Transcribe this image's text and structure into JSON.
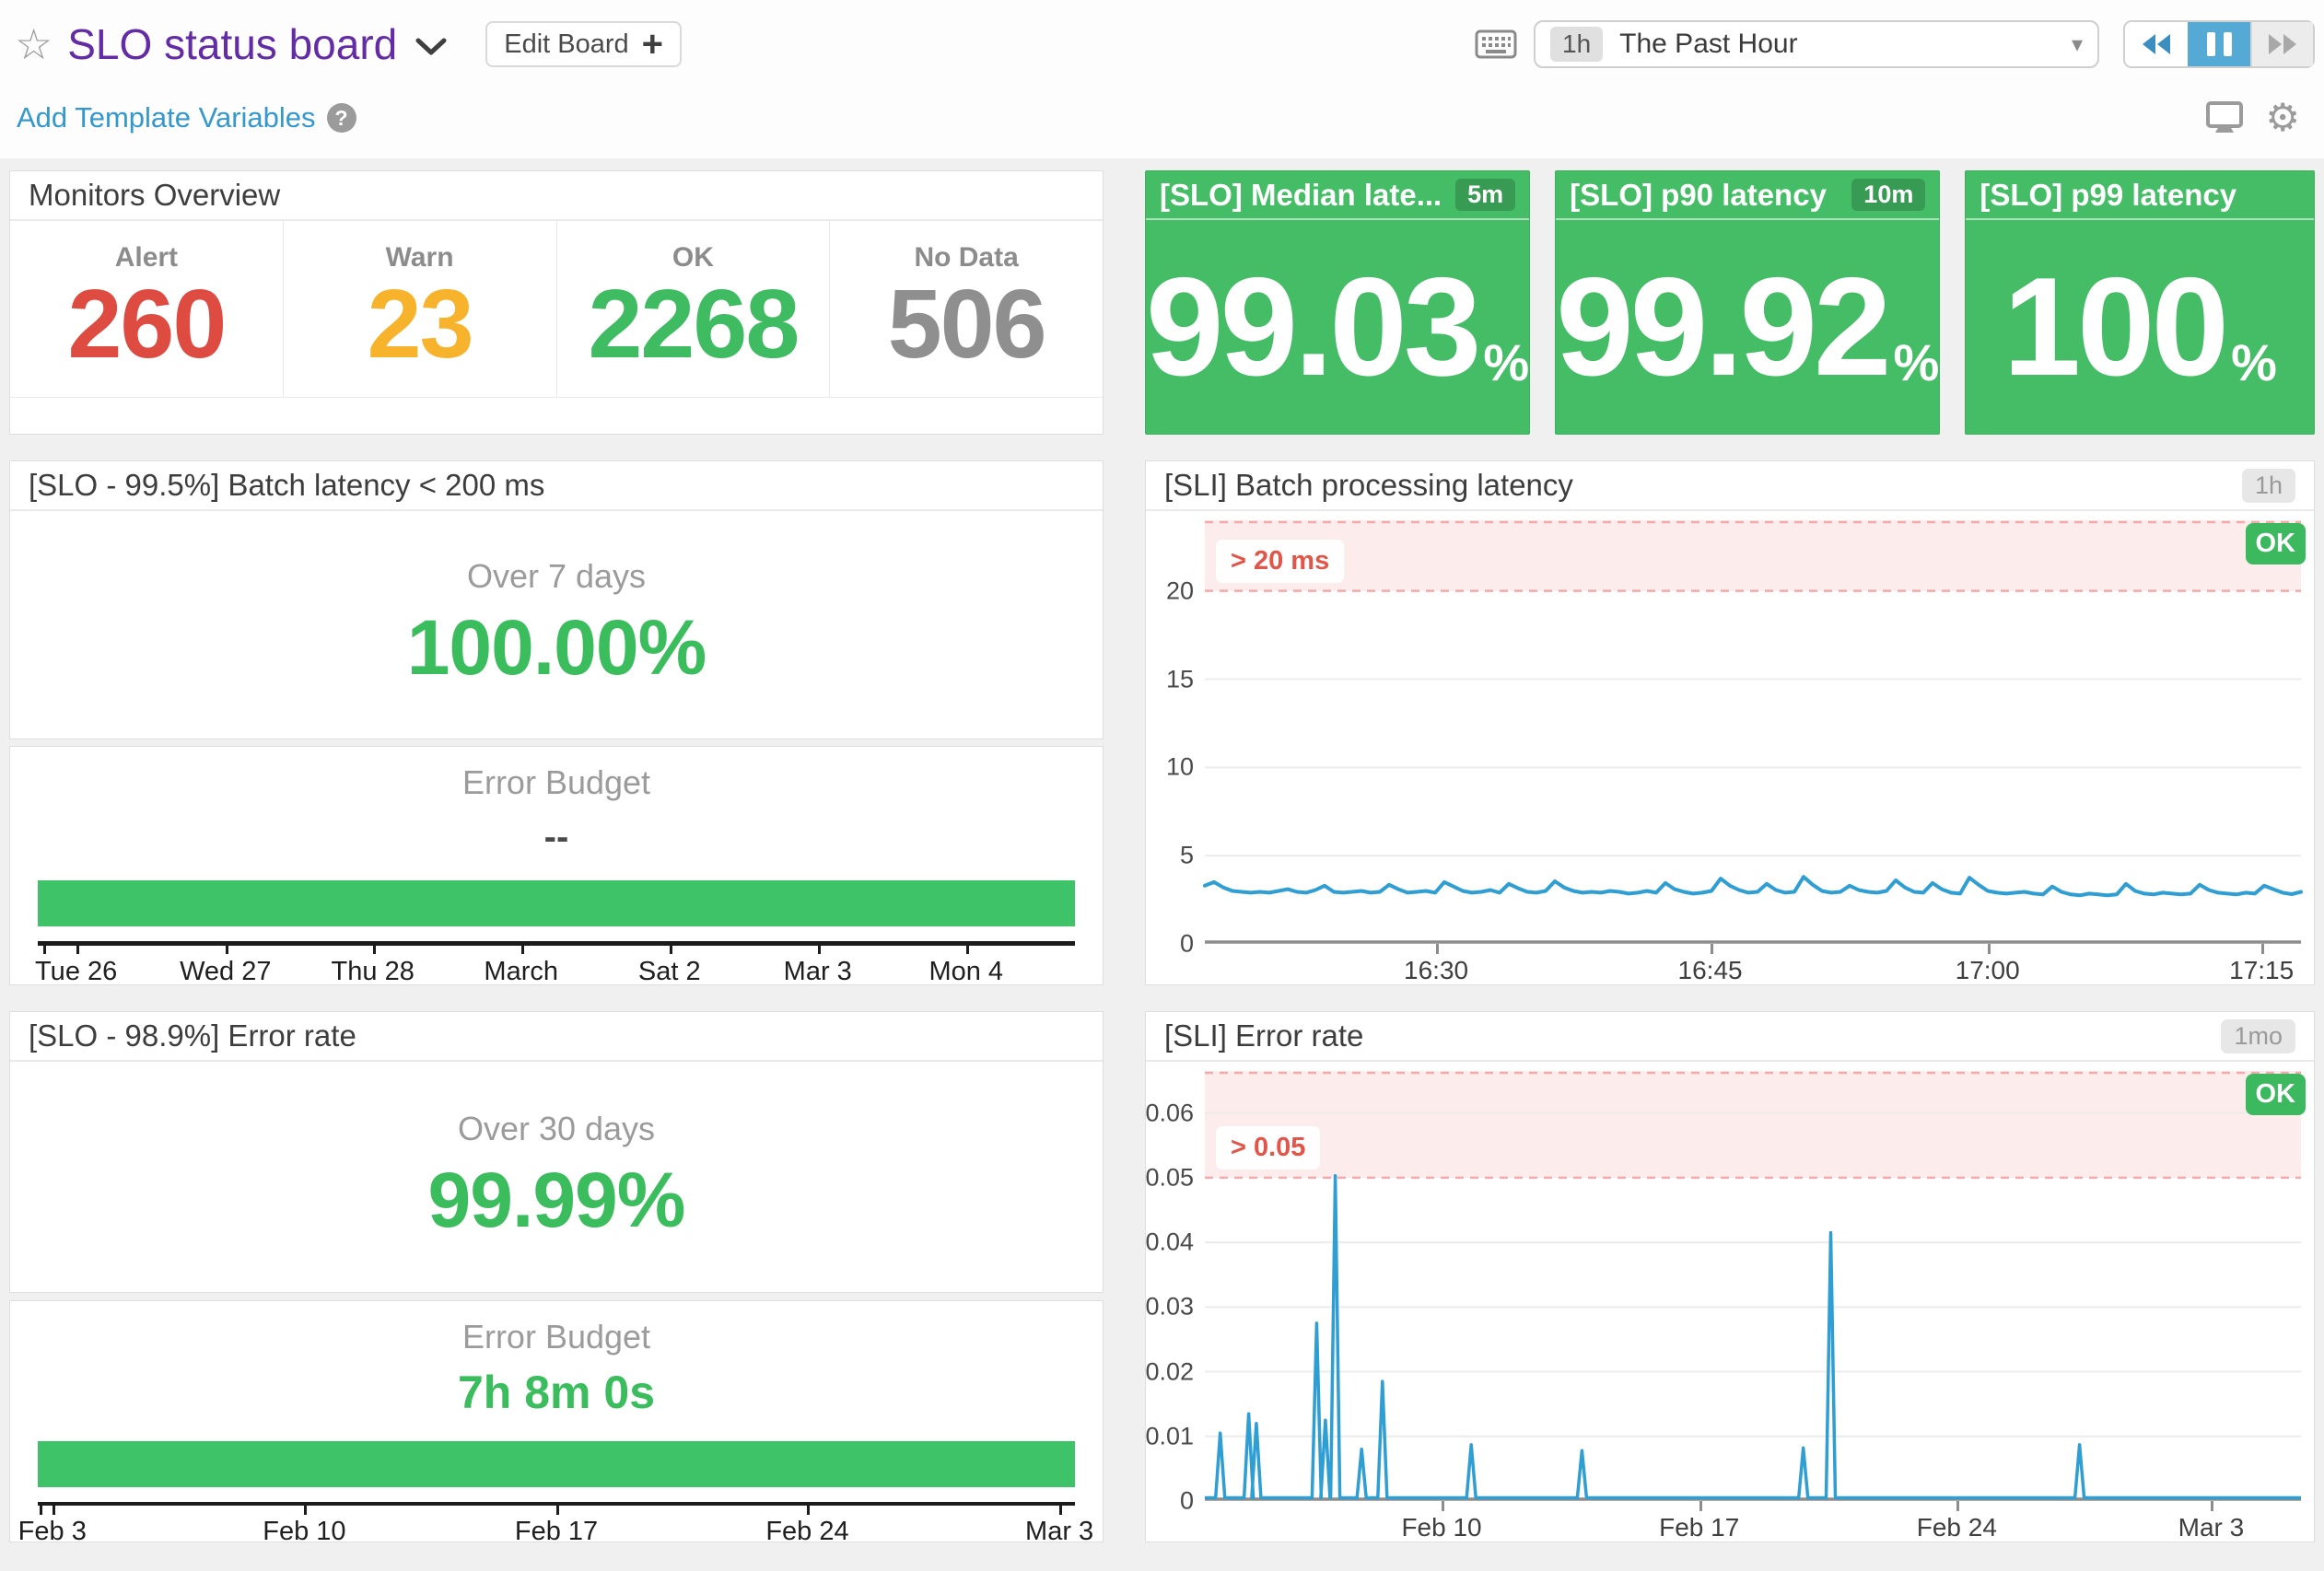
{
  "header": {
    "title": "SLO status board",
    "edit_board_label": "Edit Board",
    "time_range": {
      "badge": "1h",
      "label": "The Past Hour"
    },
    "add_template_variables": "Add Template Variables",
    "help_glyph": "?"
  },
  "colors": {
    "alert": "#de4b40",
    "warn": "#f7b32c",
    "ok": "#3fbc62",
    "no_data": "#8f8f8f",
    "tile_bg": "#45bd66",
    "green_text": "#3bbd5e",
    "bar_green": "#3fc368",
    "chart_blue": "#2f9ed3",
    "threshold_pink": "#fdecec",
    "threshold_border": "#f2aaaa"
  },
  "monitors_overview": {
    "title": "Monitors Overview",
    "stats": [
      {
        "label": "Alert",
        "value": "260",
        "color": "#de4b40"
      },
      {
        "label": "Warn",
        "value": "23",
        "color": "#f7b32c"
      },
      {
        "label": "OK",
        "value": "2268",
        "color": "#3fbc62"
      },
      {
        "label": "No Data",
        "value": "506",
        "color": "#8f8f8f"
      }
    ]
  },
  "slo_tiles": [
    {
      "title": "[SLO] Median late...",
      "badge": "5m",
      "value": "99.03",
      "unit": "%"
    },
    {
      "title": "[SLO] p90 latency",
      "badge": "10m",
      "value": "99.92",
      "unit": "%"
    },
    {
      "title": "[SLO] p99 latency",
      "badge": null,
      "value": "100",
      "unit": "%"
    }
  ],
  "slo_batch": {
    "title": "[SLO - 99.5%] Batch latency < 200 ms",
    "period_label": "Over 7 days",
    "value": "100.00%",
    "budget_label": "Error Budget",
    "budget_value": "--",
    "bar_fill_pct": 100,
    "extra_ticks": [
      0.5
    ],
    "axis_ticks": [
      {
        "label": "Tue 26",
        "pos": 3.7
      },
      {
        "label": "Wed 27",
        "pos": 18.1
      },
      {
        "label": "Thu 28",
        "pos": 32.3
      },
      {
        "label": "March",
        "pos": 46.6
      },
      {
        "label": "Sat 2",
        "pos": 60.9
      },
      {
        "label": "Mar 3",
        "pos": 75.2
      },
      {
        "label": "Mon 4",
        "pos": 89.5
      }
    ]
  },
  "slo_error": {
    "title": "[SLO - 98.9%] Error rate",
    "period_label": "Over 30 days",
    "value": "99.99%",
    "budget_label": "Error Budget",
    "budget_value": "7h 8m 0s",
    "bar_fill_pct": 100,
    "extra_ticks": [
      0.2
    ],
    "axis_ticks": [
      {
        "label": "Feb 3",
        "pos": 1.4
      },
      {
        "label": "Feb 10",
        "pos": 25.7
      },
      {
        "label": "Feb 17",
        "pos": 50.0
      },
      {
        "label": "Feb 24",
        "pos": 74.2
      },
      {
        "label": "Mar 3",
        "pos": 98.5
      }
    ]
  },
  "sli_latency": {
    "title": "[SLI] Batch processing latency",
    "time_badge": "1h",
    "status": "OK",
    "threshold_label": "> 20 ms",
    "chart": {
      "type": "line",
      "ymax": 24,
      "threshold_from": 20,
      "y_ticks": [
        20,
        15,
        10,
        5,
        0
      ],
      "x_ticks": [
        {
          "label": "16:30",
          "pos": 21.1
        },
        {
          "label": "16:45",
          "pos": 46.1
        },
        {
          "label": "17:00",
          "pos": 71.4
        },
        {
          "label": "17:15",
          "pos": 96.4
        }
      ],
      "values": [
        3.3,
        3.5,
        3.2,
        3.0,
        2.95,
        2.9,
        2.95,
        2.9,
        3.0,
        3.1,
        2.95,
        2.9,
        3.05,
        3.3,
        2.95,
        2.9,
        2.95,
        3.0,
        2.9,
        2.95,
        3.35,
        3.1,
        2.9,
        2.95,
        3.0,
        2.9,
        3.5,
        3.25,
        3.0,
        2.9,
        2.95,
        3.05,
        2.9,
        3.4,
        3.15,
        2.95,
        2.9,
        3.0,
        3.55,
        3.2,
        3.0,
        2.9,
        2.95,
        2.9,
        3.0,
        2.95,
        2.85,
        2.9,
        3.0,
        2.9,
        3.45,
        3.1,
        2.95,
        2.85,
        2.9,
        3.0,
        3.7,
        3.3,
        3.05,
        2.9,
        2.95,
        3.4,
        3.05,
        2.9,
        2.95,
        3.8,
        3.35,
        3.0,
        2.9,
        2.95,
        3.3,
        3.05,
        2.95,
        2.9,
        3.0,
        3.6,
        3.2,
        2.95,
        2.9,
        3.45,
        3.1,
        2.9,
        2.85,
        3.75,
        3.35,
        3.0,
        2.9,
        2.85,
        2.9,
        2.95,
        2.85,
        2.8,
        3.25,
        2.95,
        2.8,
        2.75,
        2.85,
        2.8,
        2.75,
        2.8,
        3.4,
        3.0,
        2.85,
        2.8,
        2.9,
        2.85,
        2.8,
        2.85,
        3.35,
        3.05,
        2.9,
        2.85,
        2.8,
        2.9,
        2.85,
        3.3,
        3.1,
        2.9,
        2.82,
        2.95
      ]
    }
  },
  "sli_error": {
    "title": "[SLI] Error rate",
    "time_badge": "1mo",
    "status": "OK",
    "threshold_label": "> 0.05",
    "chart": {
      "type": "spikes",
      "ymax": 0.0665,
      "threshold_from": 0.05,
      "y_ticks": [
        0.06,
        0.05,
        0.04,
        0.03,
        0.02,
        0.01,
        0
      ],
      "x_ticks": [
        {
          "label": "Feb 10",
          "pos": 21.6
        },
        {
          "label": "Feb 17",
          "pos": 45.1
        },
        {
          "label": "Feb 24",
          "pos": 68.6
        },
        {
          "label": "Mar 3",
          "pos": 91.8
        }
      ],
      "spikes": [
        [
          0.014,
          0.0105
        ],
        [
          0.04,
          0.0135
        ],
        [
          0.047,
          0.012
        ],
        [
          0.102,
          0.0275
        ],
        [
          0.11,
          0.0125
        ],
        [
          0.119,
          0.0503
        ],
        [
          0.143,
          0.008
        ],
        [
          0.162,
          0.0185
        ],
        [
          0.243,
          0.0087
        ],
        [
          0.344,
          0.0078
        ],
        [
          0.546,
          0.0082
        ],
        [
          0.571,
          0.0415
        ],
        [
          0.798,
          0.0087
        ]
      ]
    }
  }
}
